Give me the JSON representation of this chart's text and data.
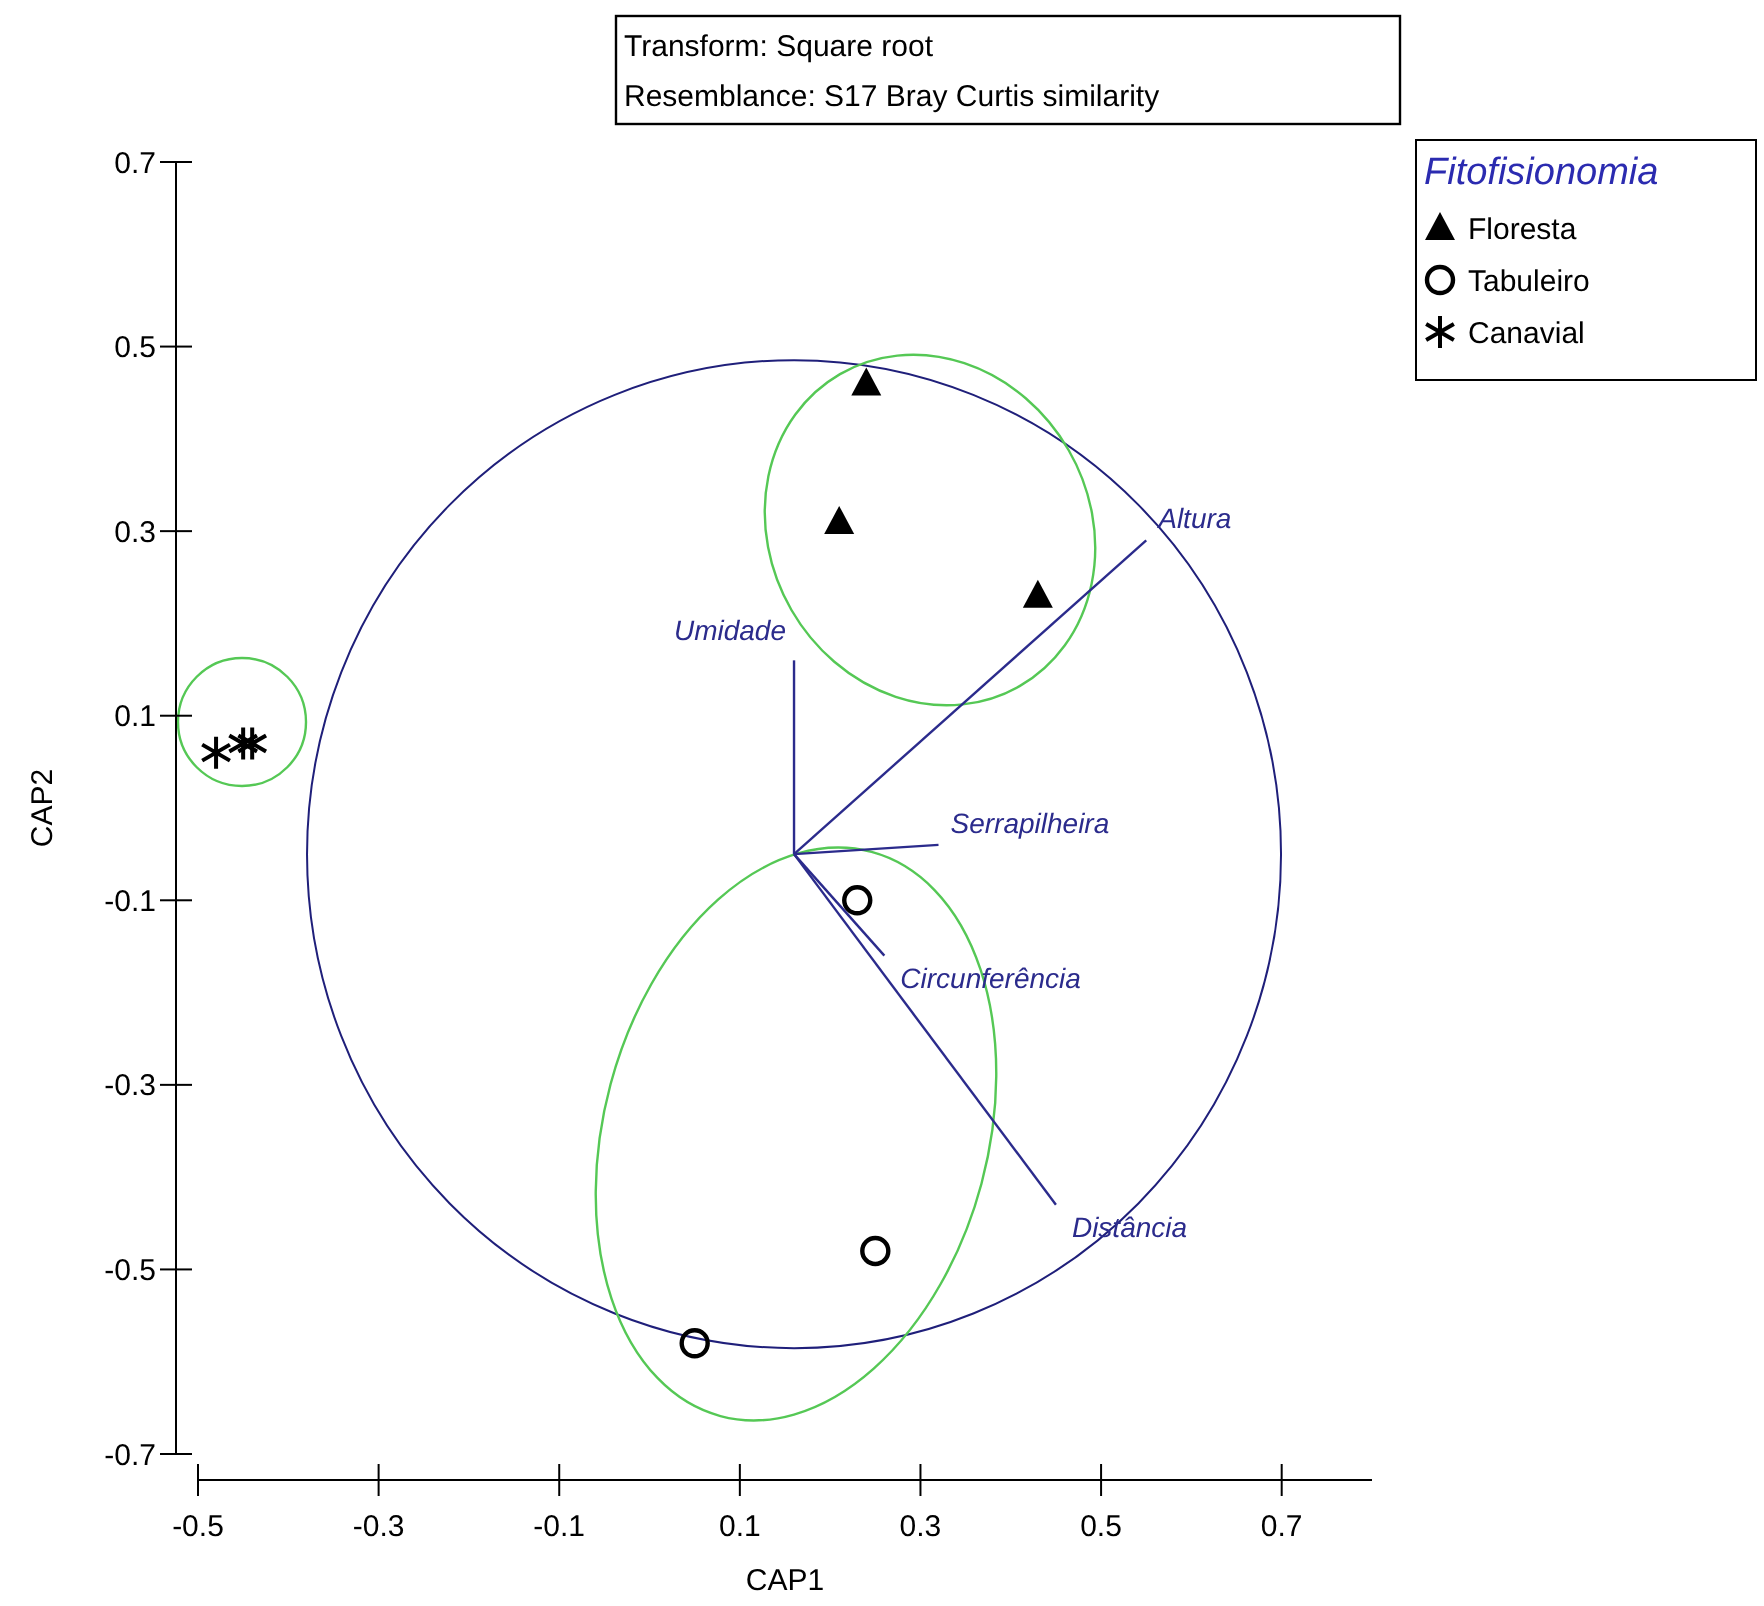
{
  "chart_data": {
    "type": "scatter",
    "title": "Transform: Square root",
    "subtitle": "Resemblance: S17 Bray Curtis similarity",
    "xlabel": "CAP1",
    "ylabel": "CAP2",
    "legend_title": "Fitofisionomia",
    "xlim": [
      -0.5,
      0.8
    ],
    "ylim": [
      -0.7,
      0.7
    ],
    "xticks": [
      -0.5,
      -0.3,
      -0.1,
      0.1,
      0.3,
      0.5,
      0.7
    ],
    "yticks": [
      -0.7,
      -0.5,
      -0.3,
      -0.1,
      0.1,
      0.3,
      0.5,
      0.7
    ],
    "grid": false,
    "legend": "top right",
    "series": [
      {
        "name": "Floresta",
        "color": "#000000",
        "marker": "triangle",
        "x": [
          0.24,
          0.21,
          0.43
        ],
        "values": [
          0.46,
          0.31,
          0.23
        ]
      },
      {
        "name": "Tabuleiro",
        "color": "#000000",
        "marker": "circle",
        "x": [
          0.23,
          0.25,
          0.05
        ],
        "values": [
          -0.1,
          -0.48,
          -0.58
        ]
      },
      {
        "name": "Canavial",
        "color": "#000000",
        "marker": "cross",
        "x": [
          -0.48,
          -0.45,
          -0.44
        ],
        "values": [
          0.06,
          0.07,
          0.07
        ]
      },
      {
        "name": "Umidade",
        "type": "line",
        "color": "#2b2b8c",
        "x": [
          0.16,
          0.16
        ],
        "values": [
          -0.05,
          0.16
        ]
      },
      {
        "name": "Altura",
        "type": "line",
        "color": "#2b2b8c",
        "x": [
          0.16,
          0.55
        ],
        "values": [
          -0.05,
          0.29
        ]
      },
      {
        "name": "Serrapilheira",
        "type": "line",
        "color": "#2b2b8c",
        "x": [
          0.16,
          0.32
        ],
        "values": [
          -0.05,
          -0.04
        ]
      },
      {
        "name": "Circunferência",
        "type": "line",
        "color": "#2b2b8c",
        "x": [
          0.16,
          0.26
        ],
        "values": [
          -0.05,
          -0.16
        ]
      },
      {
        "name": "Distância",
        "type": "line",
        "color": "#2b2b8c",
        "x": [
          0.16,
          0.45
        ],
        "values": [
          -0.05,
          -0.43
        ]
      }
    ]
  }
}
